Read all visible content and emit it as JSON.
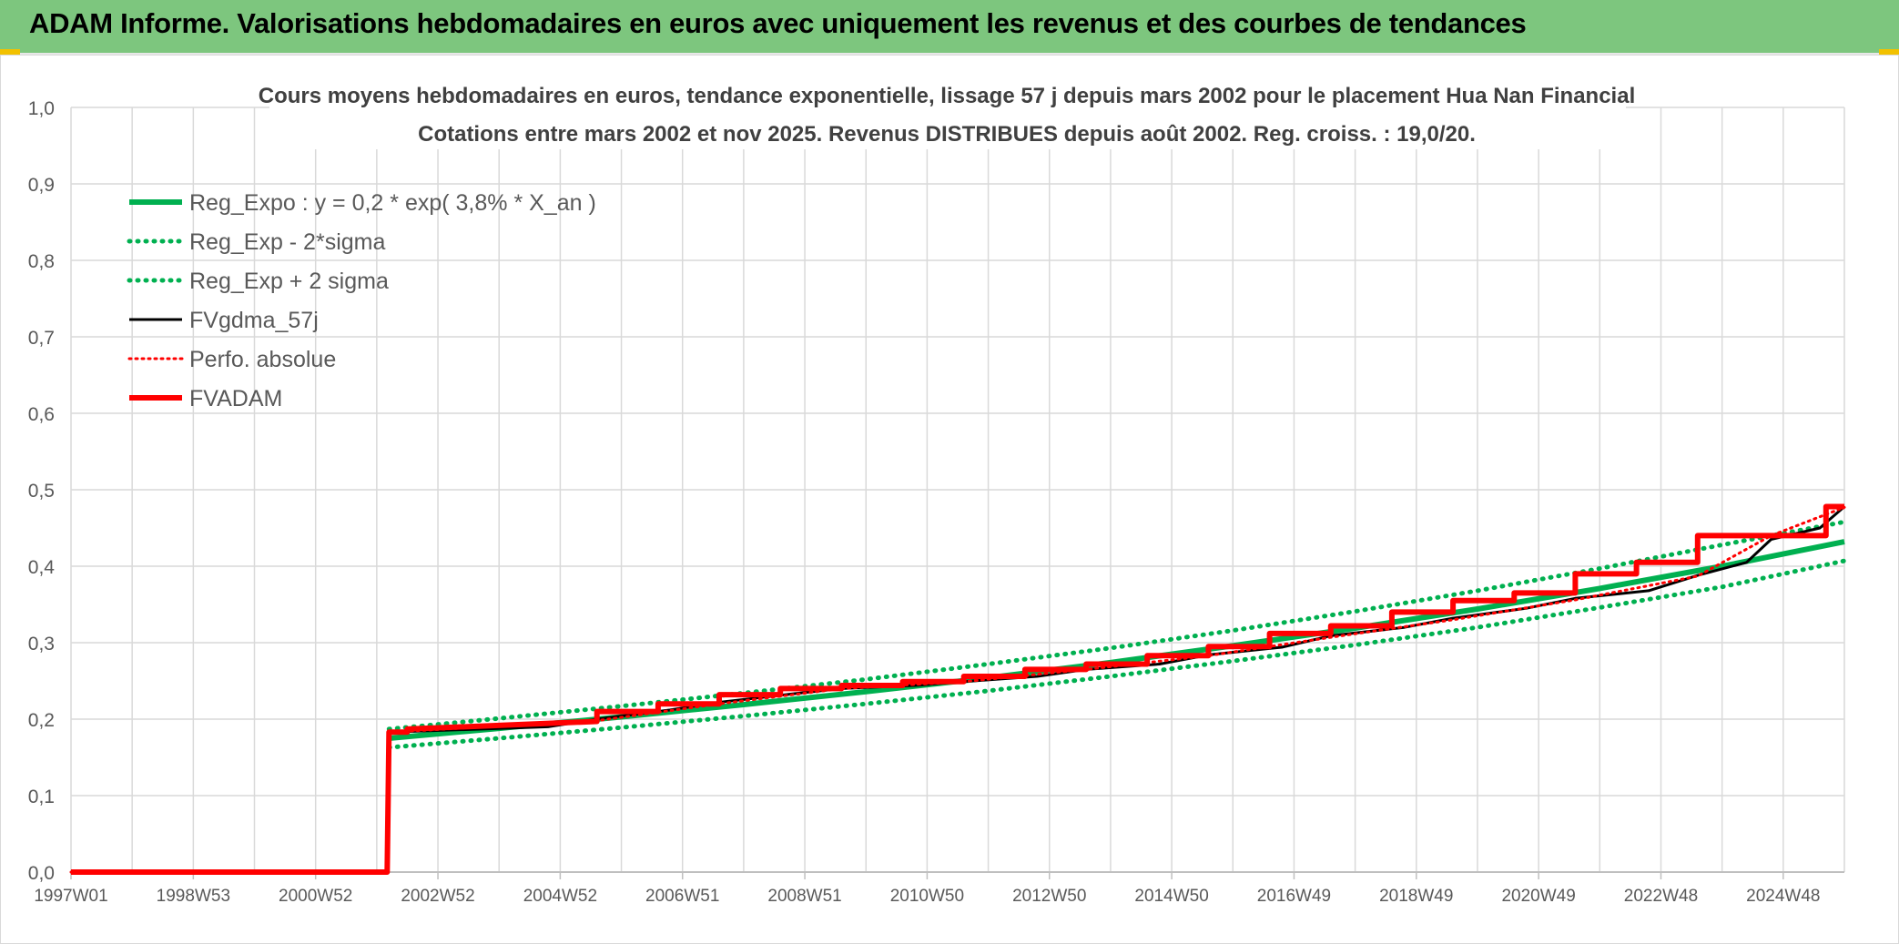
{
  "banner": {
    "title": "ADAM Informe. Valorisations hebdomadaires en euros avec uniquement les revenus et des courbes de tendances"
  },
  "colors": {
    "banner_bg": "#7dc67e",
    "reg_green": "#00b050",
    "fvgdma_black": "#000000",
    "adam_red": "#ff0000",
    "grid": "#d9d9d9",
    "axis_text": "#595959",
    "title_text": "#404040"
  },
  "chart_data": {
    "type": "line",
    "title": "Cours moyens hebdomadaires en euros, tendance exponentielle, lissage 57 j depuis mars 2002 pour le placement Hua Nan Financial",
    "subtitle": "Cotations entre mars 2002 et nov 2025. Revenus DISTRIBUES depuis août 2002. Reg. croiss. : 19,0/20.",
    "xlabel": "",
    "ylabel": "",
    "x_ticks": [
      {
        "label": "1997W01",
        "year": 1997.0
      },
      {
        "label": "1998W53",
        "year": 1999.0
      },
      {
        "label": "2000W52",
        "year": 2001.0
      },
      {
        "label": "2002W52",
        "year": 2003.0
      },
      {
        "label": "2004W52",
        "year": 2005.0
      },
      {
        "label": "2006W51",
        "year": 2007.0
      },
      {
        "label": "2008W51",
        "year": 2009.0
      },
      {
        "label": "2010W50",
        "year": 2011.0
      },
      {
        "label": "2012W50",
        "year": 2013.0
      },
      {
        "label": "2014W50",
        "year": 2015.0
      },
      {
        "label": "2016W49",
        "year": 2017.0
      },
      {
        "label": "2018W49",
        "year": 2019.0
      },
      {
        "label": "2020W49",
        "year": 2021.0
      },
      {
        "label": "2022W48",
        "year": 2023.0
      },
      {
        "label": "2024W48",
        "year": 2025.0
      }
    ],
    "x_range": [
      1997.0,
      2026.0
    ],
    "ylim": [
      0,
      1
    ],
    "y_ticks": [
      "0,0",
      "0,1",
      "0,2",
      "0,3",
      "0,4",
      "0,5",
      "0,6",
      "0,7",
      "0,8",
      "0,9",
      "1,0"
    ],
    "grid": true,
    "legend_position": "top-left",
    "series": [
      {
        "name": "Reg_Expo : y = 0,2 * exp( 3,8% *  X_an )",
        "style": "solid-green-thick",
        "x": [
          2002.2,
          2004,
          2006,
          2008,
          2010,
          2012,
          2014,
          2016,
          2018,
          2020,
          2022,
          2024,
          2026
        ],
        "y": [
          0.175,
          0.188,
          0.203,
          0.219,
          0.236,
          0.254,
          0.274,
          0.296,
          0.319,
          0.344,
          0.371,
          0.4,
          0.432
        ]
      },
      {
        "name": "Reg_Exp - 2*sigma",
        "style": "dotted-green",
        "x": [
          2002.2,
          2004,
          2006,
          2008,
          2010,
          2012,
          2014,
          2016,
          2018,
          2020,
          2022,
          2024,
          2026
        ],
        "y": [
          0.163,
          0.175,
          0.189,
          0.204,
          0.22,
          0.237,
          0.256,
          0.276,
          0.297,
          0.32,
          0.346,
          0.373,
          0.407
        ]
      },
      {
        "name": "Reg_Exp + 2 sigma",
        "style": "dotted-green",
        "x": [
          2002.2,
          2004,
          2006,
          2008,
          2010,
          2012,
          2014,
          2016,
          2018,
          2020,
          2022,
          2024,
          2026
        ],
        "y": [
          0.187,
          0.201,
          0.217,
          0.234,
          0.252,
          0.272,
          0.293,
          0.316,
          0.341,
          0.368,
          0.397,
          0.428,
          0.458
        ]
      },
      {
        "name": "FVgdma_57j",
        "style": "solid-black",
        "x": [
          1997.0,
          2002.17,
          2002.2,
          2004.8,
          2005.6,
          2006.8,
          2007.6,
          2008.8,
          2009.6,
          2010.8,
          2011.6,
          2012.8,
          2013.6,
          2014.8,
          2015.6,
          2016.8,
          2017.6,
          2018.8,
          2019.6,
          2020.8,
          2021.6,
          2022.8,
          2023.6,
          2024.4,
          2024.8,
          2025.6,
          2026.0
        ],
        "y": [
          0.0,
          0.0,
          0.183,
          0.19,
          0.2,
          0.212,
          0.222,
          0.233,
          0.24,
          0.244,
          0.249,
          0.256,
          0.265,
          0.272,
          0.284,
          0.294,
          0.309,
          0.32,
          0.332,
          0.345,
          0.358,
          0.368,
          0.388,
          0.405,
          0.435,
          0.45,
          0.478
        ]
      },
      {
        "name": "Perfo. absolue",
        "style": "dotted-red",
        "x": [
          1997.0,
          2002.17,
          2002.2,
          2005.6,
          2007.6,
          2009.6,
          2011.6,
          2013.6,
          2015.6,
          2017.6,
          2019.6,
          2021.6,
          2023.6,
          2024.8,
          2026.0
        ],
        "y": [
          0.0,
          0.0,
          0.183,
          0.198,
          0.22,
          0.24,
          0.249,
          0.265,
          0.283,
          0.307,
          0.33,
          0.356,
          0.387,
          0.44,
          0.477
        ]
      },
      {
        "name": "FVADAM",
        "style": "solid-red-thick",
        "x": [
          1997.0,
          2002.17,
          2002.2,
          2002.5,
          2002.5,
          2005.6,
          2005.6,
          2006.6,
          2006.6,
          2007.6,
          2007.6,
          2008.6,
          2008.6,
          2009.6,
          2009.6,
          2010.6,
          2010.6,
          2011.6,
          2011.6,
          2012.6,
          2012.6,
          2013.6,
          2013.6,
          2014.6,
          2014.6,
          2015.6,
          2015.6,
          2016.6,
          2016.6,
          2017.6,
          2017.6,
          2018.6,
          2018.6,
          2019.6,
          2019.6,
          2020.6,
          2020.6,
          2021.6,
          2021.6,
          2022.6,
          2022.6,
          2023.6,
          2023.6,
          2024.6,
          2024.6,
          2025.7,
          2025.7,
          2026.0
        ],
        "y": [
          0.0,
          0.0,
          0.183,
          0.183,
          0.187,
          0.197,
          0.21,
          0.21,
          0.22,
          0.22,
          0.232,
          0.232,
          0.24,
          0.24,
          0.244,
          0.244,
          0.249,
          0.249,
          0.256,
          0.256,
          0.265,
          0.265,
          0.272,
          0.272,
          0.283,
          0.283,
          0.295,
          0.295,
          0.312,
          0.312,
          0.322,
          0.322,
          0.34,
          0.34,
          0.355,
          0.355,
          0.365,
          0.365,
          0.39,
          0.39,
          0.405,
          0.405,
          0.44,
          0.44,
          0.44,
          0.44,
          0.478,
          0.478
        ]
      }
    ]
  }
}
